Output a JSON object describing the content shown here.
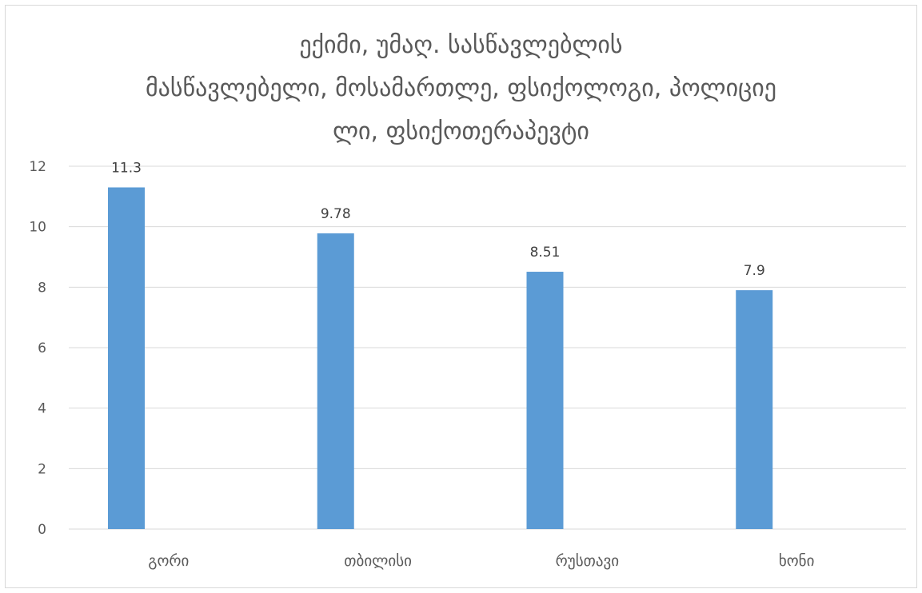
{
  "chart_data": {
    "type": "bar",
    "title_lines": [
      "ექიმი, უმაღ. სასწავლებლის",
      "მასწავლებელი, მოსამართლე, ფსიქოლოგი, პოლიციე",
      "ლი, ფსიქოთერაპევტი"
    ],
    "categories": [
      "გორი",
      "თბილისი",
      "რუსთავი",
      "ხონი"
    ],
    "values": [
      11.3,
      9.78,
      8.51,
      7.9
    ],
    "data_labels": [
      "11.3",
      "9.78",
      "8.51",
      "7.9"
    ],
    "ylim": [
      0,
      12
    ],
    "yticks": [
      0,
      2,
      4,
      6,
      8,
      10,
      12
    ],
    "grid": true,
    "legend": "none",
    "xlabel": "",
    "ylabel": "",
    "colors": {
      "bar": "#5b9bd5",
      "grid": "#d9d9d9",
      "text": "#595959"
    }
  }
}
